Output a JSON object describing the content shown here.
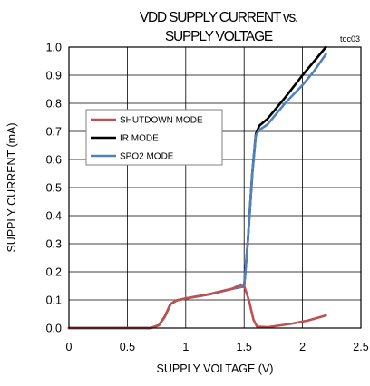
{
  "chart_data": {
    "type": "line",
    "title": "VDD SUPPLY CURRENT vs. SUPPLY VOLTAGE",
    "title_lines": [
      "VDD SUPPLY CURRENT vs.",
      "SUPPLY VOLTAGE"
    ],
    "tag": "toc03",
    "xlabel": "SUPPLY VOLTAGE (V)",
    "ylabel": "SUPPLY CURRENT (mA)",
    "xlim": [
      0,
      2.5
    ],
    "ylim": [
      0,
      1.0
    ],
    "x_ticks": [
      0,
      0.5,
      1,
      1.5,
      2,
      2.5
    ],
    "x_tick_labels": [
      "0",
      "0.5",
      "1",
      "1.5",
      "2",
      "2.5"
    ],
    "y_ticks": [
      0,
      0.1,
      0.2,
      0.3,
      0.4,
      0.5,
      0.6,
      0.7,
      0.8,
      0.9,
      1.0
    ],
    "y_tick_labels": [
      "0.0",
      "0.1",
      "0.2",
      "0.3",
      "0.4",
      "0.5",
      "0.6",
      "0.7",
      "0.8",
      "0.9",
      "1.0"
    ],
    "grid": true,
    "legend_position": "left",
    "series": [
      {
        "name": "SHUTDOWN MODE",
        "color": "#c0504d",
        "points": [
          [
            0,
            0.0
          ],
          [
            0.7,
            0.0
          ],
          [
            0.77,
            0.01
          ],
          [
            0.82,
            0.04
          ],
          [
            0.87,
            0.085
          ],
          [
            0.92,
            0.098
          ],
          [
            1.0,
            0.105
          ],
          [
            1.2,
            0.12
          ],
          [
            1.4,
            0.14
          ],
          [
            1.47,
            0.155
          ],
          [
            1.5,
            0.15
          ],
          [
            1.54,
            0.1
          ],
          [
            1.58,
            0.03
          ],
          [
            1.61,
            0.005
          ],
          [
            1.7,
            0.003
          ],
          [
            1.9,
            0.015
          ],
          [
            2.05,
            0.027
          ],
          [
            2.2,
            0.045
          ]
        ]
      },
      {
        "name": "IR MODE",
        "color": "#000000",
        "points": [
          [
            0,
            0.0
          ],
          [
            0.7,
            0.0
          ],
          [
            0.77,
            0.01
          ],
          [
            0.82,
            0.04
          ],
          [
            0.87,
            0.085
          ],
          [
            0.92,
            0.098
          ],
          [
            1.0,
            0.105
          ],
          [
            1.2,
            0.12
          ],
          [
            1.4,
            0.14
          ],
          [
            1.5,
            0.148
          ],
          [
            1.53,
            0.3
          ],
          [
            1.57,
            0.55
          ],
          [
            1.6,
            0.69
          ],
          [
            1.63,
            0.72
          ],
          [
            1.7,
            0.745
          ],
          [
            1.85,
            0.82
          ],
          [
            2.0,
            0.9
          ],
          [
            2.1,
            0.95
          ],
          [
            2.2,
            1.0
          ]
        ]
      },
      {
        "name": "SPO2 MODE",
        "color": "#4f81bd",
        "points": [
          [
            0,
            0.0
          ],
          [
            0.7,
            0.0
          ],
          [
            0.77,
            0.01
          ],
          [
            0.82,
            0.04
          ],
          [
            0.87,
            0.085
          ],
          [
            0.92,
            0.098
          ],
          [
            1.0,
            0.105
          ],
          [
            1.2,
            0.12
          ],
          [
            1.4,
            0.14
          ],
          [
            1.5,
            0.148
          ],
          [
            1.53,
            0.3
          ],
          [
            1.57,
            0.55
          ],
          [
            1.6,
            0.685
          ],
          [
            1.63,
            0.705
          ],
          [
            1.7,
            0.725
          ],
          [
            1.85,
            0.8
          ],
          [
            2.0,
            0.865
          ],
          [
            2.1,
            0.915
          ],
          [
            2.2,
            0.975
          ]
        ]
      }
    ]
  }
}
